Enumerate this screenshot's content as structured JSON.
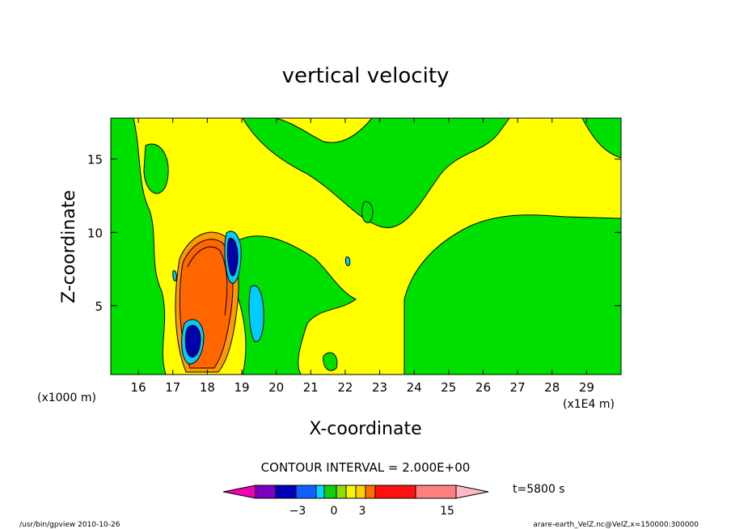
{
  "chart_data": {
    "type": "heatmap",
    "title": "vertical velocity",
    "xlabel": "X-coordinate",
    "ylabel": "Z-coordinate",
    "x_unit_left": "(x1000 m)",
    "x_unit_right": "(x1E4 m)",
    "x_ticks": [
      16,
      17,
      18,
      19,
      20,
      21,
      22,
      23,
      24,
      25,
      26,
      27,
      28,
      29
    ],
    "y_ticks": [
      5,
      10,
      15
    ],
    "xlim": [
      15.2,
      30.0
    ],
    "ylim": [
      0.3,
      17.8
    ],
    "contour_interval": "CONTOUR INTERVAL = 2.000E+00",
    "time_label": "t=5800 s",
    "colorbar": {
      "ticks": [
        -3,
        0,
        3,
        15
      ],
      "tick_labels": [
        "−3",
        "0",
        "3",
        "15"
      ],
      "boxes": [
        "#7b00c0",
        "#0000b8",
        "#1060ff",
        "#00d8ff",
        "#10d010",
        "#90e000",
        "#f8f800",
        "#ffd000",
        "#ff7000",
        "#ff1010",
        "#ff8080"
      ],
      "under_color": "#f000b0",
      "over_color": "#ffb8c8"
    },
    "colors": {
      "background_field": "#ffff00",
      "weak_negative": "#00e000",
      "updraft_core": "#ff6600",
      "updraft_edge": "#ff9900",
      "downdraft": "#0000aa",
      "downdraft_edge": "#00ccff"
    },
    "features": [
      {
        "name": "updraft",
        "x": 17.9,
        "z": 6.5,
        "w": 12
      },
      {
        "name": "downdraft",
        "x": 17.5,
        "z": 2.5,
        "w": -6
      },
      {
        "name": "downdraft",
        "x": 18.7,
        "z": 8.0,
        "w": -6
      },
      {
        "name": "downdraft",
        "x": 19.3,
        "z": 3.5,
        "w": -2
      }
    ]
  },
  "footer": {
    "left": "/usr/bin/gpview   2010-10-26",
    "right": "arare-earth_VelZ.nc@VelZ,x=150000:300000"
  }
}
